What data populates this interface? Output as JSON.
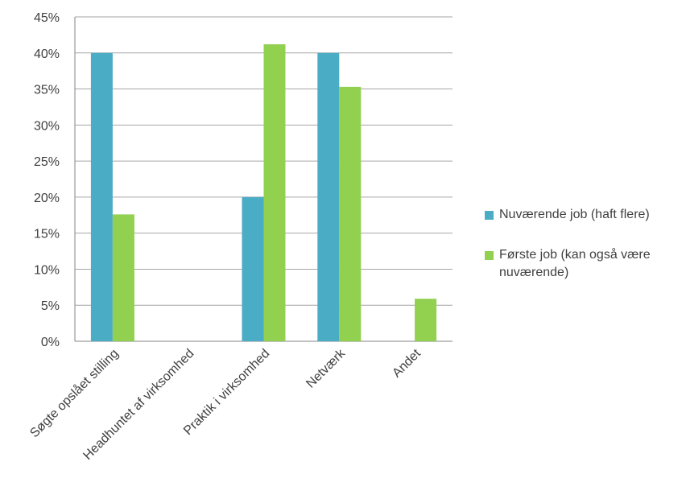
{
  "chart_data": {
    "type": "bar",
    "categories": [
      "Søgte opslået stilling",
      "Headhuntet af virksomhed",
      "Praktik i virksomhed",
      "Netværk",
      "Andet"
    ],
    "series": [
      {
        "name": "Nuværende job (haft flere)",
        "color": "#4BACC6",
        "values": [
          40,
          0,
          20,
          40,
          0
        ]
      },
      {
        "name": "Første job (kan også være nuværende)",
        "color": "#92D050",
        "values": [
          17.6,
          0,
          41.2,
          35.3,
          5.9
        ]
      }
    ],
    "yticks": [
      "0%",
      "5%",
      "10%",
      "15%",
      "20%",
      "25%",
      "30%",
      "35%",
      "40%",
      "45%"
    ],
    "ylim": [
      0,
      45
    ],
    "grid": true,
    "legend_position": "right"
  }
}
